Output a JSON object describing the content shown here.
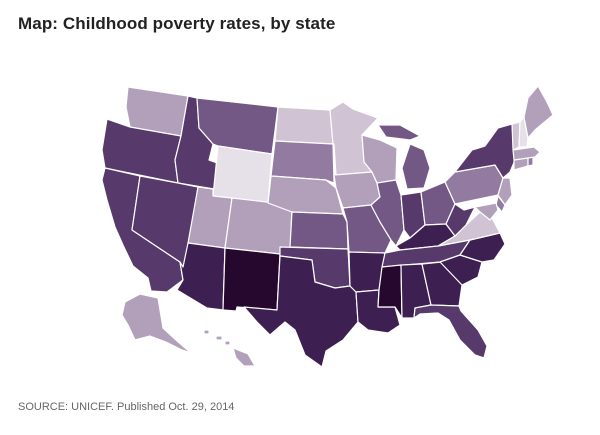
{
  "title": "Map: Childhood poverty rates, by state",
  "source": "SOURCE: UNICEF. Published Oct. 29, 2014",
  "colors": {
    "tier1": "#e6e1e8",
    "tier2": "#cfc3d4",
    "tier3": "#b2a0bb",
    "tier4": "#937aa0",
    "tier5": "#735785",
    "tier6": "#573a6b",
    "tier7": "#3d1f51",
    "tier8": "#26082f"
  },
  "states": [
    {
      "id": "WA",
      "tier": 3
    },
    {
      "id": "OR",
      "tier": 6
    },
    {
      "id": "CA",
      "tier": 6
    },
    {
      "id": "ID",
      "tier": 6
    },
    {
      "id": "NV",
      "tier": 6
    },
    {
      "id": "MT",
      "tier": 5
    },
    {
      "id": "WY",
      "tier": 1
    },
    {
      "id": "UT",
      "tier": 3
    },
    {
      "id": "AZ",
      "tier": 7
    },
    {
      "id": "CO",
      "tier": 3
    },
    {
      "id": "NM",
      "tier": 8
    },
    {
      "id": "ND",
      "tier": 2
    },
    {
      "id": "SD",
      "tier": 4
    },
    {
      "id": "NE",
      "tier": 3
    },
    {
      "id": "KS",
      "tier": 5
    },
    {
      "id": "OK",
      "tier": 6
    },
    {
      "id": "TX",
      "tier": 7
    },
    {
      "id": "MN",
      "tier": 2
    },
    {
      "id": "IA",
      "tier": 3
    },
    {
      "id": "MO",
      "tier": 5
    },
    {
      "id": "AR",
      "tier": 7
    },
    {
      "id": "LA",
      "tier": 7
    },
    {
      "id": "WI",
      "tier": 3
    },
    {
      "id": "IL",
      "tier": 5
    },
    {
      "id": "MI",
      "tier": 5
    },
    {
      "id": "IN",
      "tier": 6
    },
    {
      "id": "OH",
      "tier": 5
    },
    {
      "id": "KY",
      "tier": 7
    },
    {
      "id": "TN",
      "tier": 6
    },
    {
      "id": "MS",
      "tier": 8
    },
    {
      "id": "AL",
      "tier": 7
    },
    {
      "id": "GA",
      "tier": 7
    },
    {
      "id": "FL",
      "tier": 6
    },
    {
      "id": "SC",
      "tier": 7
    },
    {
      "id": "NC",
      "tier": 7
    },
    {
      "id": "VA",
      "tier": 2
    },
    {
      "id": "WV",
      "tier": 6
    },
    {
      "id": "PA",
      "tier": 4
    },
    {
      "id": "NY",
      "tier": 6
    },
    {
      "id": "ME",
      "tier": 3
    },
    {
      "id": "VT",
      "tier": 2
    },
    {
      "id": "NH",
      "tier": 1
    },
    {
      "id": "MA",
      "tier": 3
    },
    {
      "id": "CT",
      "tier": 3
    },
    {
      "id": "RI",
      "tier": 4
    },
    {
      "id": "NJ",
      "tier": 3
    },
    {
      "id": "DE",
      "tier": 4
    },
    {
      "id": "MD",
      "tier": 3
    },
    {
      "id": "AK",
      "tier": 3
    },
    {
      "id": "HI",
      "tier": 3
    }
  ]
}
